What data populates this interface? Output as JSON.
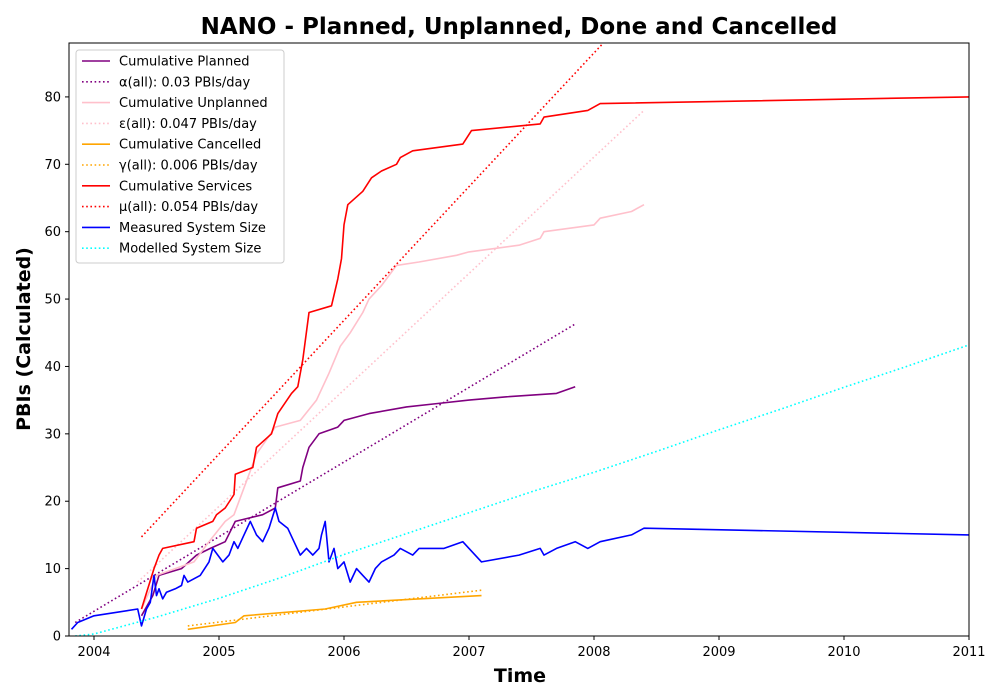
{
  "chart_data": {
    "type": "line",
    "title": "NANO - Planned, Unplanned, Done  and Cancelled",
    "xlabel": "Time",
    "ylabel": "PBIs (Calculated)",
    "xlim": [
      2003.8,
      2011.0
    ],
    "ylim": [
      0,
      88
    ],
    "x_ticks": [
      2004,
      2005,
      2006,
      2007,
      2008,
      2009,
      2010,
      2011
    ],
    "y_ticks": [
      0,
      10,
      20,
      30,
      40,
      50,
      60,
      70,
      80
    ],
    "grid": false,
    "legend_position": "upper-left",
    "series": [
      {
        "name": "Cumulative Planned",
        "style": "solid",
        "color": "#800080",
        "points": [
          [
            2004.38,
            3
          ],
          [
            2004.47,
            6
          ],
          [
            2004.52,
            9
          ],
          [
            2004.7,
            10
          ],
          [
            2004.82,
            12
          ],
          [
            2004.93,
            13
          ],
          [
            2005.05,
            14
          ],
          [
            2005.13,
            17
          ],
          [
            2005.35,
            18
          ],
          [
            2005.45,
            19
          ],
          [
            2005.47,
            22
          ],
          [
            2005.65,
            23
          ],
          [
            2005.67,
            25
          ],
          [
            2005.72,
            28
          ],
          [
            2005.8,
            30
          ],
          [
            2005.95,
            31
          ],
          [
            2006.0,
            32
          ],
          [
            2006.2,
            33
          ],
          [
            2006.5,
            34
          ],
          [
            2006.75,
            34.5
          ],
          [
            2007.0,
            35
          ],
          [
            2007.3,
            35.5
          ],
          [
            2007.7,
            36
          ],
          [
            2007.85,
            37
          ]
        ]
      },
      {
        "name": "α(all): 0.03 PBIs/day",
        "style": "dotted",
        "color": "#800080",
        "points": [
          [
            2003.85,
            2
          ],
          [
            2007.85,
            46.3
          ]
        ]
      },
      {
        "name": "Cumulative Unplanned",
        "style": "solid",
        "color": "#ffc0cb",
        "points": [
          [
            2004.38,
            4
          ],
          [
            2004.5,
            9
          ],
          [
            2004.8,
            11
          ],
          [
            2004.92,
            14
          ],
          [
            2005.05,
            17
          ],
          [
            2005.12,
            18
          ],
          [
            2005.2,
            22
          ],
          [
            2005.3,
            27
          ],
          [
            2005.45,
            31
          ],
          [
            2005.65,
            32
          ],
          [
            2005.78,
            35
          ],
          [
            2005.88,
            39
          ],
          [
            2005.97,
            43
          ],
          [
            2006.05,
            45
          ],
          [
            2006.15,
            48
          ],
          [
            2006.2,
            50
          ],
          [
            2006.3,
            52
          ],
          [
            2006.42,
            55
          ],
          [
            2006.6,
            55.5
          ],
          [
            2006.9,
            56.5
          ],
          [
            2007.0,
            57
          ],
          [
            2007.4,
            58
          ],
          [
            2007.57,
            59
          ],
          [
            2007.6,
            60
          ],
          [
            2008.0,
            61
          ],
          [
            2008.05,
            62
          ],
          [
            2008.3,
            63
          ],
          [
            2008.4,
            64
          ]
        ]
      },
      {
        "name": "ε(all): 0.047 PBIs/day",
        "style": "dotted",
        "color": "#ffc0cb",
        "points": [
          [
            2004.35,
            8
          ],
          [
            2008.4,
            78
          ]
        ]
      },
      {
        "name": "Cumulative Cancelled",
        "style": "solid",
        "color": "#ffa500",
        "points": [
          [
            2004.75,
            1
          ],
          [
            2005.13,
            2
          ],
          [
            2005.2,
            3
          ],
          [
            2005.85,
            4
          ],
          [
            2006.1,
            5
          ],
          [
            2007.1,
            6
          ]
        ]
      },
      {
        "name": "γ(all): 0.006 PBIs/day",
        "style": "dotted",
        "color": "#ffa500",
        "points": [
          [
            2004.75,
            1.5
          ],
          [
            2007.1,
            6.8
          ]
        ]
      },
      {
        "name": "Cumulative Services",
        "style": "solid",
        "color": "#ff0000",
        "points": [
          [
            2004.38,
            4
          ],
          [
            2004.48,
            10
          ],
          [
            2004.52,
            12
          ],
          [
            2004.55,
            13
          ],
          [
            2004.8,
            14
          ],
          [
            2004.82,
            16
          ],
          [
            2004.95,
            17
          ],
          [
            2004.98,
            18
          ],
          [
            2005.05,
            19
          ],
          [
            2005.12,
            21
          ],
          [
            2005.13,
            24
          ],
          [
            2005.27,
            25
          ],
          [
            2005.3,
            28
          ],
          [
            2005.42,
            30
          ],
          [
            2005.47,
            33
          ],
          [
            2005.58,
            36
          ],
          [
            2005.63,
            37
          ],
          [
            2005.67,
            41
          ],
          [
            2005.72,
            48
          ],
          [
            2005.9,
            49
          ],
          [
            2005.95,
            53
          ],
          [
            2005.98,
            56
          ],
          [
            2006.0,
            61
          ],
          [
            2006.03,
            64
          ],
          [
            2006.15,
            66
          ],
          [
            2006.22,
            68
          ],
          [
            2006.3,
            69
          ],
          [
            2006.42,
            70
          ],
          [
            2006.45,
            71
          ],
          [
            2006.55,
            72
          ],
          [
            2006.95,
            73
          ],
          [
            2007.02,
            75
          ],
          [
            2007.57,
            76
          ],
          [
            2007.6,
            77
          ],
          [
            2007.95,
            78
          ],
          [
            2008.05,
            79
          ],
          [
            2011.0,
            80
          ]
        ]
      },
      {
        "name": "μ(all): 0.054 PBIs/day",
        "style": "dotted",
        "color": "#ff0000",
        "points": [
          [
            2004.38,
            14.7
          ],
          [
            2008.1,
            88.5
          ]
        ]
      },
      {
        "name": "Measured System Size",
        "style": "solid",
        "color": "#0000ff",
        "points": [
          [
            2003.82,
            1
          ],
          [
            2003.87,
            2
          ],
          [
            2004.0,
            3
          ],
          [
            2004.35,
            4
          ],
          [
            2004.38,
            1.5
          ],
          [
            2004.42,
            4
          ],
          [
            2004.45,
            5
          ],
          [
            2004.48,
            9
          ],
          [
            2004.5,
            6
          ],
          [
            2004.52,
            7
          ],
          [
            2004.55,
            5.5
          ],
          [
            2004.58,
            6.5
          ],
          [
            2004.65,
            7
          ],
          [
            2004.7,
            7.5
          ],
          [
            2004.72,
            9
          ],
          [
            2004.75,
            8
          ],
          [
            2004.85,
            9
          ],
          [
            2004.92,
            11
          ],
          [
            2004.95,
            13
          ],
          [
            2005.03,
            11
          ],
          [
            2005.08,
            12
          ],
          [
            2005.12,
            14
          ],
          [
            2005.15,
            13
          ],
          [
            2005.2,
            15
          ],
          [
            2005.25,
            17
          ],
          [
            2005.3,
            15
          ],
          [
            2005.35,
            14
          ],
          [
            2005.4,
            16
          ],
          [
            2005.45,
            19
          ],
          [
            2005.48,
            17
          ],
          [
            2005.55,
            16
          ],
          [
            2005.6,
            14
          ],
          [
            2005.65,
            12
          ],
          [
            2005.7,
            13
          ],
          [
            2005.75,
            12
          ],
          [
            2005.8,
            13
          ],
          [
            2005.82,
            15
          ],
          [
            2005.85,
            17
          ],
          [
            2005.88,
            11
          ],
          [
            2005.92,
            13
          ],
          [
            2005.95,
            10
          ],
          [
            2006.0,
            11
          ],
          [
            2006.05,
            8
          ],
          [
            2006.1,
            10
          ],
          [
            2006.15,
            9
          ],
          [
            2006.2,
            8
          ],
          [
            2006.25,
            10
          ],
          [
            2006.3,
            11
          ],
          [
            2006.4,
            12
          ],
          [
            2006.45,
            13
          ],
          [
            2006.55,
            12
          ],
          [
            2006.6,
            13
          ],
          [
            2006.8,
            13
          ],
          [
            2006.95,
            14
          ],
          [
            2007.0,
            13
          ],
          [
            2007.1,
            11
          ],
          [
            2007.4,
            12
          ],
          [
            2007.57,
            13
          ],
          [
            2007.6,
            12
          ],
          [
            2007.7,
            13
          ],
          [
            2007.85,
            14
          ],
          [
            2007.95,
            13
          ],
          [
            2008.05,
            14
          ],
          [
            2008.3,
            15
          ],
          [
            2008.4,
            16
          ],
          [
            2011.0,
            15
          ]
        ]
      },
      {
        "name": "Modelled System Size",
        "style": "dotted",
        "color": "#00ffff",
        "points": [
          [
            2003.85,
            0
          ],
          [
            2004.0,
            0.3
          ],
          [
            2004.5,
            2.8
          ],
          [
            2005.0,
            5.6
          ],
          [
            2005.5,
            8.7
          ],
          [
            2006.0,
            12.1
          ],
          [
            2006.5,
            15.2
          ],
          [
            2007.0,
            18.3
          ],
          [
            2007.5,
            21.4
          ],
          [
            2008.0,
            24.3
          ],
          [
            2008.5,
            27.4
          ],
          [
            2009.0,
            30.6
          ],
          [
            2009.5,
            33.7
          ],
          [
            2010.0,
            36.9
          ],
          [
            2010.5,
            40.0
          ],
          [
            2011.0,
            43.2
          ]
        ]
      }
    ]
  }
}
